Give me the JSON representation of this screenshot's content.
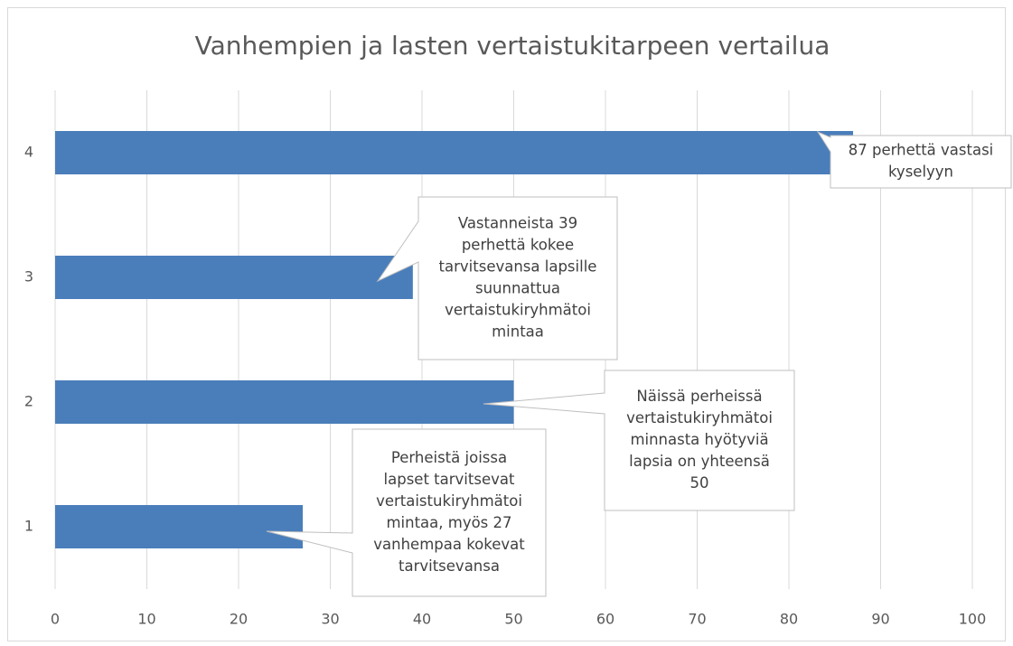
{
  "chart_data": {
    "type": "hbar",
    "title": "Vanhempien ja lasten vertaistukitarpeen vertailua",
    "categories": [
      "1",
      "2",
      "3",
      "4"
    ],
    "values": [
      27,
      50,
      39,
      87
    ],
    "color": "#4a7ebb",
    "xlim": [
      0,
      100
    ],
    "xticks": [
      0,
      10,
      20,
      30,
      40,
      50,
      60,
      70,
      80,
      90,
      100
    ],
    "grid": true,
    "annotations": [
      {
        "lines": [
          "Perheistä joissa",
          "lapset tarvitsevat",
          "vertaistukiryhmätoi",
          "mintaa, myös 27",
          "vanhempaa kokevat",
          "tarvitsevansa"
        ]
      },
      {
        "lines": [
          "Näissä perheissä",
          "vertaistukiryhmätoi",
          "minnasta hyötyviä",
          "lapsia on yhteensä",
          "50"
        ]
      },
      {
        "lines": [
          "Vastanneista 39",
          "perhettä kokee",
          "tarvitsevansa lapsille",
          "suunnattua",
          "vertaistukiryhmätoi",
          "mintaa"
        ]
      },
      {
        "lines": [
          "87 perhettä vastasi",
          "kyselyyn"
        ]
      }
    ]
  }
}
